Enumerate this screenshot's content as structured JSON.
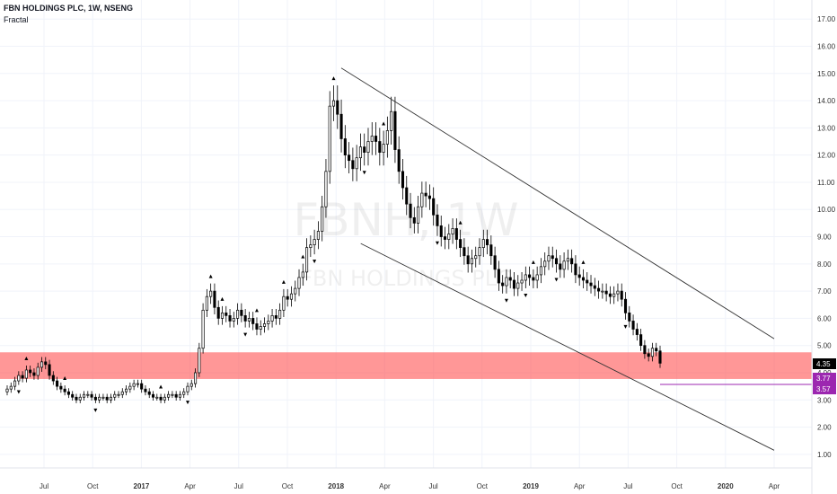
{
  "header": {
    "title": "FBN HOLDINGS PLC, 1W, NSENG",
    "indicator": "Fractal"
  },
  "watermark": {
    "symbol": "FBNH, 1W",
    "name": "FBN HOLDINGS PLC"
  },
  "colors": {
    "up_candle": "#ffffff",
    "down_candle": "#000000",
    "support_zone": "#ff5252",
    "price_tag": "#000000",
    "level_tag": "#9c27b0"
  },
  "price_tags": {
    "last": "4.35",
    "upper_level": "3.77",
    "lower_level": "3.57"
  },
  "chart_data": {
    "type": "candlestick",
    "y_ticks": [
      "1.00",
      "2.00",
      "3.00",
      "4.00",
      "5.00",
      "6.00",
      "7.00",
      "8.00",
      "9.00",
      "10.00",
      "11.00",
      "12.00",
      "13.00",
      "14.00",
      "15.00",
      "16.00",
      "17.00"
    ],
    "ylim": [
      0.5,
      17.7
    ],
    "x_ticks": [
      "Jul",
      "Oct",
      "2017",
      "Apr",
      "Jul",
      "Oct",
      "2018",
      "Apr",
      "Jul",
      "Oct",
      "2019",
      "Apr",
      "Jul",
      "Oct",
      "2020",
      "Apr"
    ],
    "support_zone": [
      3.77,
      4.75
    ],
    "horizontal_level": 3.57,
    "trend_channel": {
      "upper": [
        [
          0.0,
          15.2
        ],
        [
          1.0,
          5.25
        ]
      ],
      "lower": [
        [
          0.045,
          8.75
        ],
        [
          1.0,
          1.15
        ]
      ]
    },
    "weekly_close": [
      3.4,
      3.5,
      3.7,
      3.9,
      3.8,
      4.1,
      4.0,
      3.9,
      4.2,
      4.4,
      4.3,
      3.9,
      3.7,
      3.5,
      3.4,
      3.3,
      3.2,
      3.1,
      3.0,
      3.1,
      3.2,
      3.2,
      3.1,
      3.0,
      3.1,
      3.1,
      3.0,
      3.1,
      3.2,
      3.2,
      3.3,
      3.4,
      3.5,
      3.6,
      3.6,
      3.4,
      3.3,
      3.2,
      3.1,
      3.1,
      3.0,
      3.1,
      3.2,
      3.2,
      3.1,
      3.2,
      3.3,
      3.5,
      3.6,
      4.0,
      4.9,
      6.3,
      6.8,
      7.0,
      6.4,
      6.0,
      6.2,
      6.1,
      5.9,
      6.0,
      6.3,
      6.1,
      5.9,
      6.0,
      5.8,
      5.6,
      5.7,
      5.8,
      5.9,
      6.1,
      6.0,
      6.3,
      6.8,
      6.7,
      6.9,
      7.1,
      7.5,
      7.7,
      8.6,
      8.7,
      8.9,
      9.2,
      10.1,
      11.4,
      13.8,
      14.0,
      13.5,
      12.6,
      12.0,
      11.8,
      11.5,
      11.9,
      12.3,
      12.1,
      12.5,
      12.7,
      12.5,
      12.1,
      12.4,
      12.9,
      13.6,
      12.2,
      11.4,
      10.8,
      10.2,
      9.7,
      9.5,
      10.1,
      10.6,
      10.5,
      10.4,
      9.8,
      9.4,
      9.0,
      8.9,
      9.1,
      9.3,
      8.9,
      8.6,
      8.3,
      8.0,
      8.2,
      8.3,
      8.6,
      8.9,
      8.7,
      8.3,
      7.8,
      7.3,
      7.2,
      7.5,
      7.4,
      7.1,
      7.3,
      7.4,
      7.6,
      7.5,
      7.4,
      7.6,
      7.9,
      8.1,
      8.3,
      8.2,
      8.0,
      7.8,
      8.1,
      8.2,
      8.0,
      7.6,
      7.5,
      7.4,
      7.3,
      7.2,
      7.1,
      7.0,
      7.0,
      6.9,
      6.8,
      6.9,
      7.0,
      6.7,
      6.2,
      5.9,
      5.6,
      5.4,
      5.0,
      4.7,
      4.6,
      4.9,
      4.8,
      4.35
    ],
    "fractals": {
      "up": [
        5,
        15,
        40,
        53,
        56,
        65,
        72,
        77,
        85,
        98,
        118,
        137,
        150
      ],
      "down": [
        3,
        23,
        47,
        62,
        80,
        93,
        112,
        130,
        135,
        143,
        161,
        172
      ]
    }
  }
}
